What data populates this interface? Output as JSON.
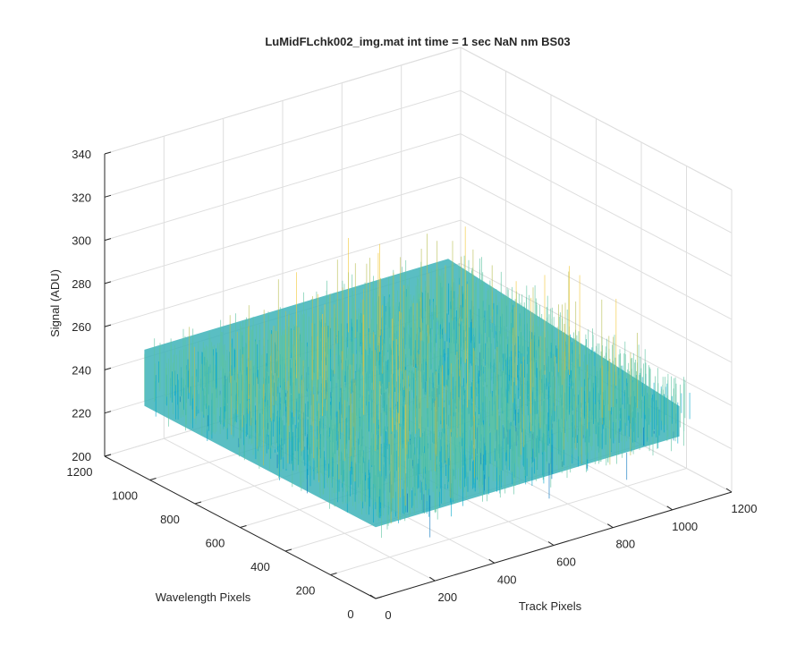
{
  "chart_data": {
    "type": "surface",
    "title": "LuMidFLchk002_img.mat int time = 1 sec  NaN nm BS03",
    "xlabel": "Track Pixels",
    "ylabel": "Wavelength Pixels",
    "zlabel": "Signal (ADU)",
    "x_ticks": [
      "0",
      "200",
      "400",
      "600",
      "800",
      "1000",
      "1200"
    ],
    "y_ticks": [
      "0",
      "200",
      "400",
      "600",
      "800",
      "1000",
      "1200"
    ],
    "z_ticks": [
      "200",
      "220",
      "240",
      "260",
      "280",
      "300",
      "320",
      "340"
    ],
    "xlim": [
      0,
      1200
    ],
    "ylim": [
      0,
      1200
    ],
    "zlim": [
      200,
      340
    ],
    "data_extent": {
      "x": [
        0,
        1024
      ],
      "y": [
        0,
        1024
      ]
    },
    "signal_mean": 255,
    "signal_range": [
      215,
      310
    ],
    "grid": true,
    "colormap": [
      "#0072bd",
      "#00a6ca",
      "#5cc3a0",
      "#b7bd52",
      "#f1c737"
    ]
  }
}
